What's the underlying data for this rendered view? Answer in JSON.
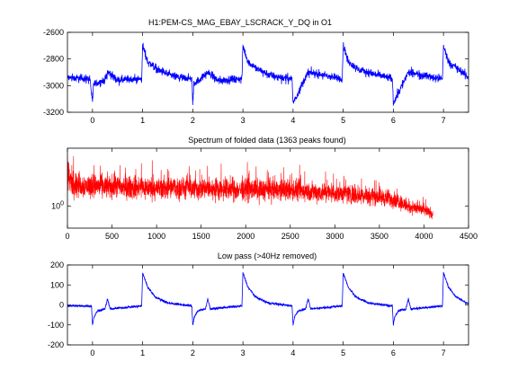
{
  "figure": {
    "background": "#ffffff"
  },
  "chart_data": [
    {
      "type": "line",
      "title": "H1:PEM-CS_MAG_EBAY_LSCRACK_Y_DQ in O1",
      "xlabel": "",
      "ylabel": "",
      "xlim": [
        -0.5,
        7.5
      ],
      "ylim": [
        -3200,
        -2600
      ],
      "xticks": [
        0,
        1,
        2,
        3,
        4,
        5,
        6,
        7
      ],
      "xticklabels": [
        "0",
        "1",
        "2",
        "3",
        "4",
        "5",
        "6",
        "7"
      ],
      "yticks": [
        -3200,
        -3000,
        -2800,
        -2600
      ],
      "yticklabels": [
        "-3200",
        "-3000",
        "-2800",
        "-2600"
      ],
      "grid": false,
      "color": "#0000ff",
      "period": 1.0,
      "baseline": -2945,
      "noise_amplitude": 22,
      "events": [
        {
          "offset": 0.0,
          "value": -3130,
          "kind": "dip"
        },
        {
          "offset": 0.3,
          "value": -2900,
          "kind": "small-spike"
        },
        {
          "offset": 0.0,
          "value": -2700,
          "kind": "jump",
          "phase": 1.0
        }
      ],
      "series": [
        {
          "x": [
            -0.5,
            -0.05,
            0.0,
            0.02,
            0.25,
            0.3,
            0.5,
            0.98,
            1.0,
            1.1,
            1.3,
            1.6,
            1.98,
            2.0,
            2.02,
            2.3,
            2.5,
            2.98,
            3.0,
            3.1,
            3.3,
            3.6,
            3.98,
            4.0,
            4.3,
            4.98,
            5.0,
            5.1,
            5.3,
            5.98,
            6.0,
            6.3,
            6.98,
            7.0,
            7.1,
            7.3,
            7.5
          ],
          "y": [
            -2940,
            -2950,
            -3130,
            -2990,
            -2960,
            -2895,
            -2960,
            -2950,
            -2700,
            -2820,
            -2880,
            -2930,
            -2950,
            -3130,
            -2990,
            -2900,
            -2960,
            -2950,
            -2700,
            -2820,
            -2880,
            -2930,
            -2950,
            -3130,
            -2900,
            -2950,
            -2700,
            -2820,
            -2880,
            -2950,
            -3130,
            -2900,
            -2950,
            -2700,
            -2820,
            -2880,
            -2940
          ]
        }
      ]
    },
    {
      "type": "line",
      "title": "Spectrum of folded data (1363 peaks found)",
      "xlabel": "",
      "ylabel": "",
      "xlim": [
        0,
        4500
      ],
      "yscale": "log",
      "xticks": [
        0,
        500,
        1000,
        1500,
        2000,
        2500,
        3000,
        3500,
        4000,
        4500
      ],
      "xticklabels": [
        "0",
        "500",
        "1000",
        "1500",
        "2000",
        "2500",
        "3000",
        "3500",
        "4000",
        "4500"
      ],
      "yticks": [
        1
      ],
      "yticklabels": [
        "10"
      ],
      "ytick_exponent": "0",
      "grid": false,
      "color": "#ff0000",
      "x_end": 4100,
      "envelope": {
        "x": [
          0,
          20,
          100,
          500,
          1000,
          1500,
          2000,
          2500,
          3000,
          3400,
          3700,
          3800,
          4000,
          4100
        ],
        "center": [
          3.5,
          2.6,
          2.1,
          2.0,
          1.9,
          1.85,
          1.8,
          1.75,
          1.6,
          1.45,
          1.25,
          1.0,
          0.85,
          0.75
        ],
        "spread": [
          0.6,
          0.5,
          0.35,
          0.35,
          0.34,
          0.33,
          0.33,
          0.32,
          0.3,
          0.28,
          0.25,
          0.22,
          0.18,
          0.15
        ]
      }
    },
    {
      "type": "line",
      "title": "Low pass (>40Hz removed)",
      "xlabel": "",
      "ylabel": "",
      "xlim": [
        -0.5,
        7.5
      ],
      "ylim": [
        -200,
        200
      ],
      "xticks": [
        0,
        1,
        2,
        3,
        4,
        5,
        6,
        7
      ],
      "xticklabels": [
        "0",
        "1",
        "2",
        "3",
        "4",
        "5",
        "6",
        "7"
      ],
      "yticks": [
        -200,
        -100,
        0,
        100,
        200
      ],
      "yticklabels": [
        "-200",
        "-100",
        "0",
        "100",
        "200"
      ],
      "grid": false,
      "color": "#0000ff",
      "period": 1.0,
      "series": [
        {
          "x": [
            -0.5,
            -0.02,
            0.0,
            0.03,
            0.1,
            0.25,
            0.3,
            0.35,
            0.98,
            1.0,
            1.1,
            1.25,
            1.5,
            1.98,
            2.0,
            2.03,
            2.1,
            2.25,
            2.3,
            2.35,
            2.98,
            3.0,
            3.1,
            3.25,
            3.5,
            3.98,
            4.0,
            4.03,
            4.1,
            4.25,
            4.3,
            4.35,
            4.98,
            5.0,
            5.1,
            5.25,
            5.5,
            5.98,
            6.0,
            6.03,
            6.1,
            6.25,
            6.3,
            6.35,
            6.98,
            7.0,
            7.1,
            7.25,
            7.5
          ],
          "y": [
            -5,
            -5,
            -100,
            -60,
            -30,
            -20,
            30,
            -20,
            -5,
            160,
            90,
            40,
            10,
            -5,
            -100,
            -60,
            -30,
            -20,
            30,
            -20,
            -5,
            160,
            90,
            40,
            10,
            -5,
            -100,
            -60,
            -30,
            -20,
            30,
            -20,
            -5,
            160,
            90,
            40,
            10,
            -5,
            -100,
            -60,
            -30,
            -20,
            30,
            -20,
            -5,
            160,
            90,
            40,
            5
          ]
        }
      ]
    }
  ]
}
